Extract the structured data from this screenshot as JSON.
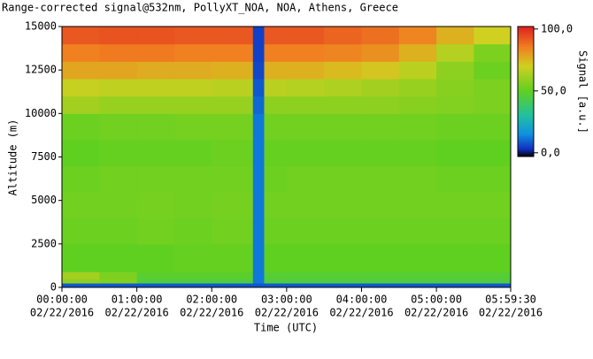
{
  "chart_data": {
    "type": "heatmap",
    "title": "Range-corrected signal@532nm, PollyXT_NOA, NOA, Athens, Greece",
    "xlabel": "Time (UTC)",
    "ylabel": "Altitude (m)",
    "colorbar_label": "Signal [a.u.]",
    "xlim": [
      0,
      5.9917
    ],
    "ylim": [
      0,
      15000
    ],
    "clim": [
      -3,
      102
    ],
    "xticks": [
      {
        "value": 0,
        "label": "00:00:00"
      },
      {
        "value": 1,
        "label": "01:00:00"
      },
      {
        "value": 2,
        "label": "02:00:00"
      },
      {
        "value": 3,
        "label": "03:00:00"
      },
      {
        "value": 4,
        "label": "04:00:00"
      },
      {
        "value": 5,
        "label": "05:00:00"
      },
      {
        "value": 5.9917,
        "label": "05:59:30"
      }
    ],
    "xtick_dates": [
      "02/22/2016",
      "02/22/2016",
      "02/22/2016",
      "02/22/2016",
      "02/22/2016",
      "02/22/2016",
      "02/22/2016"
    ],
    "yticks": [
      0,
      2500,
      5000,
      7500,
      10000,
      12500,
      15000
    ],
    "cticks": [
      {
        "value": 0,
        "label": "0,0"
      },
      {
        "value": 50,
        "label": "50,0"
      },
      {
        "value": 100,
        "label": "100,0"
      }
    ],
    "colorscale": [
      [
        -3,
        "#000000"
      ],
      [
        3,
        "#1030c0"
      ],
      [
        15,
        "#1090e0"
      ],
      [
        30,
        "#20c0a0"
      ],
      [
        50,
        "#60d020"
      ],
      [
        70,
        "#d0d020"
      ],
      [
        85,
        "#f08020"
      ],
      [
        102,
        "#e02020"
      ]
    ],
    "xbins": [
      0,
      0.5,
      1,
      1.5,
      2,
      2.55,
      2.7,
      3,
      3.5,
      4,
      4.5,
      5,
      5.5,
      5.9917
    ],
    "ybins": [
      0,
      250,
      500,
      900,
      2500,
      4000,
      5500,
      7000,
      8500,
      10000,
      11000,
      12000,
      13000,
      14000,
      15000
    ],
    "z": [
      [
        8,
        8,
        8,
        8,
        8,
        8,
        8,
        8,
        8,
        8,
        8,
        8,
        8
      ],
      [
        58,
        56,
        45,
        45,
        45,
        12,
        45,
        45,
        45,
        45,
        45,
        45,
        45
      ],
      [
        62,
        55,
        48,
        48,
        48,
        12,
        47,
        47,
        47,
        47,
        47,
        47,
        47
      ],
      [
        50,
        50,
        50,
        51,
        51,
        12,
        50,
        50,
        50,
        50,
        50,
        50,
        50
      ],
      [
        52,
        52,
        53,
        52,
        53,
        12,
        52,
        52,
        52,
        52,
        52,
        52,
        52
      ],
      [
        53,
        53,
        54,
        53,
        54,
        12,
        53,
        53,
        53,
        53,
        53,
        53,
        53
      ],
      [
        52,
        53,
        53,
        53,
        53,
        12,
        52,
        53,
        53,
        53,
        53,
        52,
        52
      ],
      [
        50,
        51,
        51,
        51,
        52,
        12,
        51,
        51,
        51,
        51,
        51,
        50,
        50
      ],
      [
        52,
        53,
        53,
        54,
        54,
        12,
        53,
        53,
        53,
        53,
        53,
        52,
        52
      ],
      [
        62,
        60,
        60,
        60,
        60,
        10,
        58,
        58,
        58,
        58,
        57,
        56,
        55
      ],
      [
        68,
        67,
        67,
        67,
        66,
        8,
        66,
        65,
        64,
        62,
        60,
        57,
        55
      ],
      [
        78,
        78,
        77,
        77,
        76,
        6,
        76,
        76,
        74,
        72,
        66,
        58,
        52
      ],
      [
        85,
        86,
        86,
        85,
        85,
        5,
        85,
        85,
        84,
        82,
        76,
        65,
        55
      ],
      [
        92,
        93,
        93,
        92,
        92,
        5,
        92,
        92,
        90,
        88,
        84,
        76,
        70
      ]
    ]
  }
}
